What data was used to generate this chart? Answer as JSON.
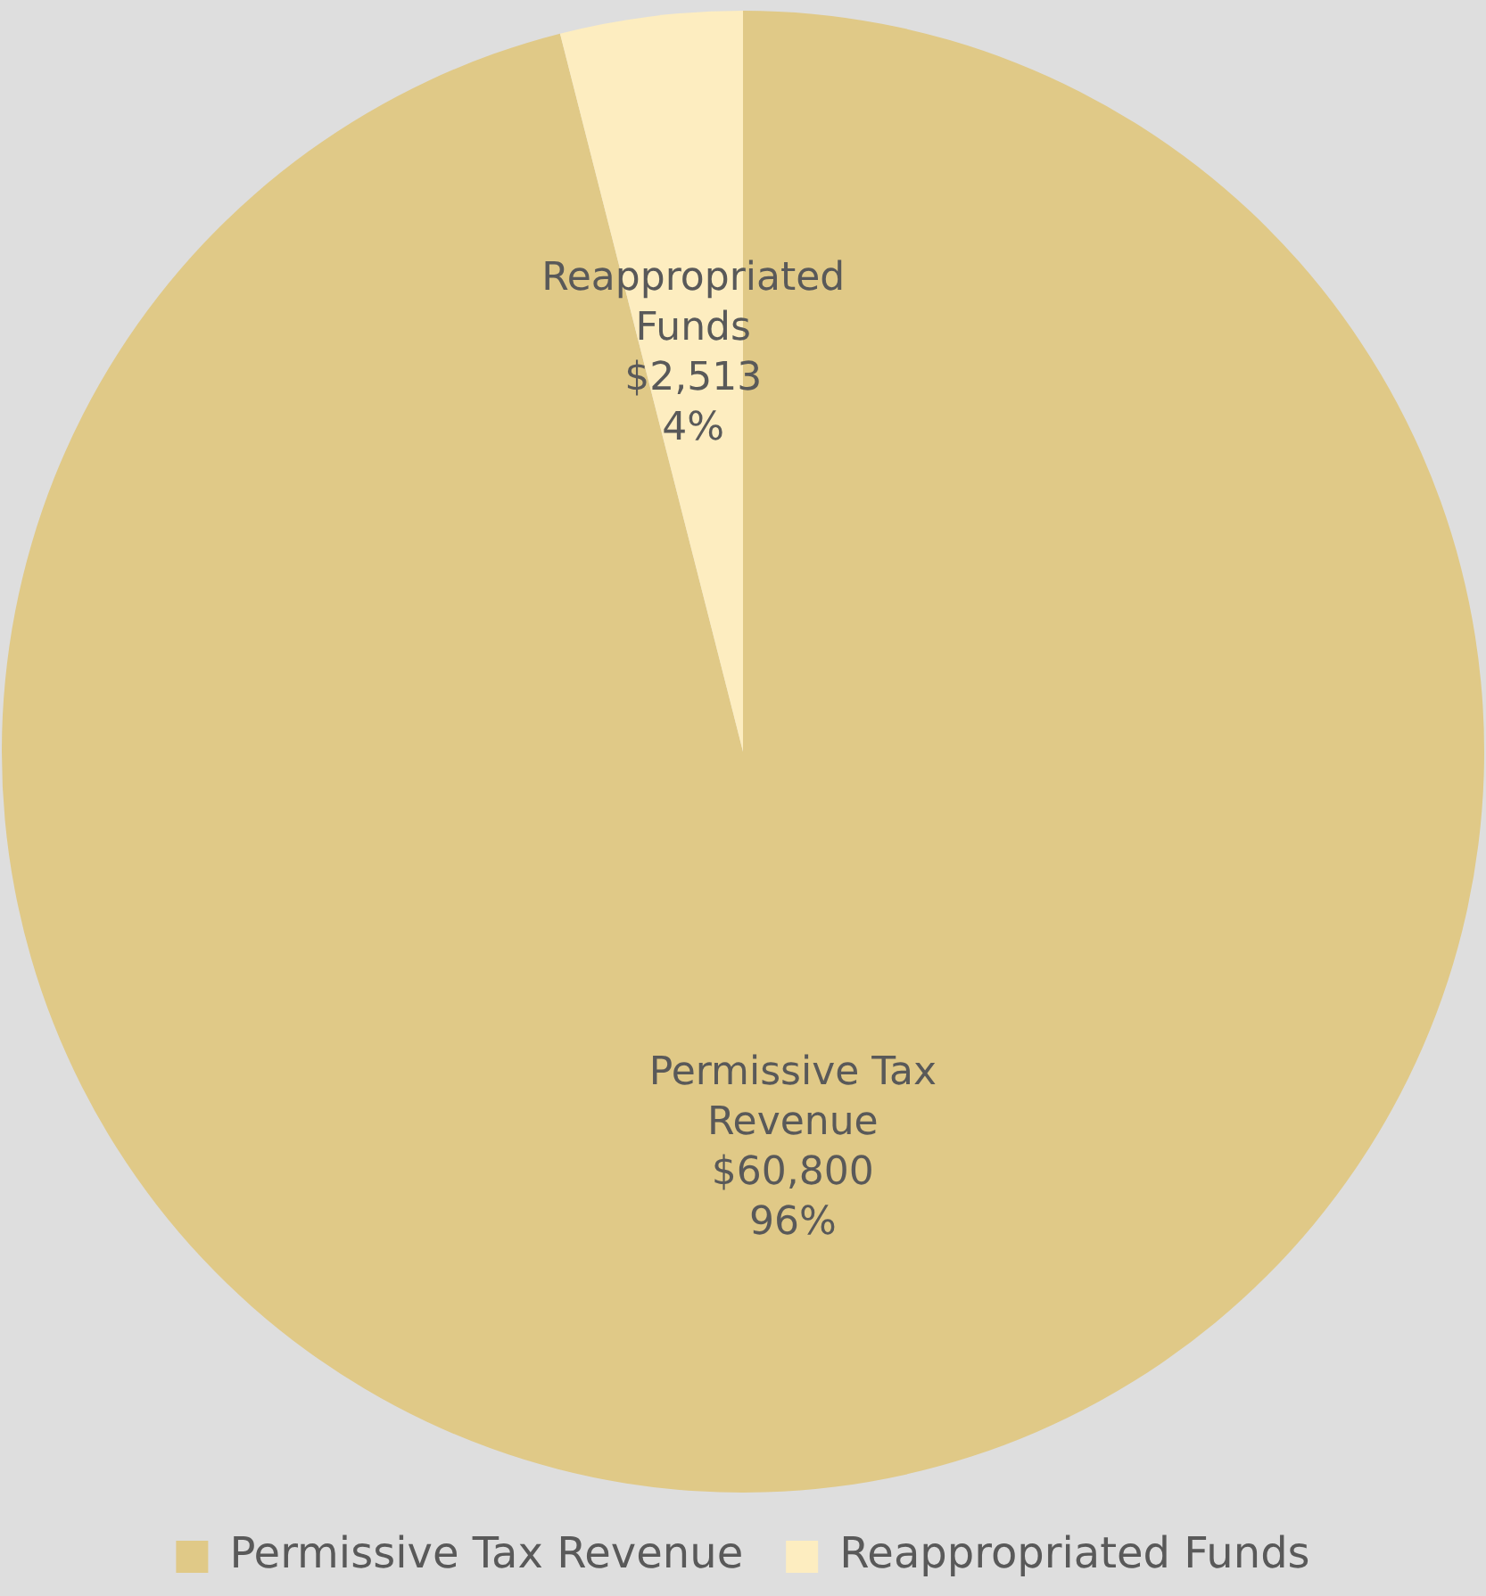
{
  "chart_data": {
    "type": "pie",
    "categories": [
      "Permissive Tax Revenue",
      "Reappropriated Funds"
    ],
    "values": [
      60800,
      2513
    ],
    "colors": [
      "#e0c987",
      "#fdedc0"
    ],
    "value_labels": [
      "$60,800\n96%",
      "$2,513\n4%"
    ],
    "legend": "bottom"
  }
}
